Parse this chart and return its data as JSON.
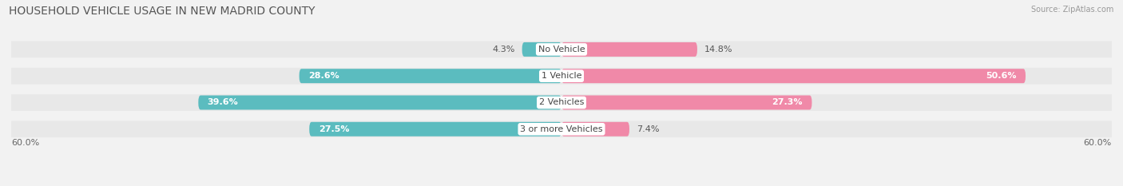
{
  "title": "HOUSEHOLD VEHICLE USAGE IN NEW MADRID COUNTY",
  "source": "Source: ZipAtlas.com",
  "categories": [
    "No Vehicle",
    "1 Vehicle",
    "2 Vehicles",
    "3 or more Vehicles"
  ],
  "owner_values": [
    4.3,
    28.6,
    39.6,
    27.5
  ],
  "renter_values": [
    14.8,
    50.6,
    27.3,
    7.4
  ],
  "owner_color": "#5bbcbf",
  "renter_color": "#f089a8",
  "axis_max": 60.0,
  "axis_label_left": "60.0%",
  "axis_label_right": "60.0%",
  "bg_color": "#f2f2f2",
  "bar_bg_color": "#e2e2e2",
  "row_bg_color": "#e8e8e8",
  "title_fontsize": 10,
  "label_fontsize": 8,
  "cat_fontsize": 8,
  "legend_fontsize": 8
}
